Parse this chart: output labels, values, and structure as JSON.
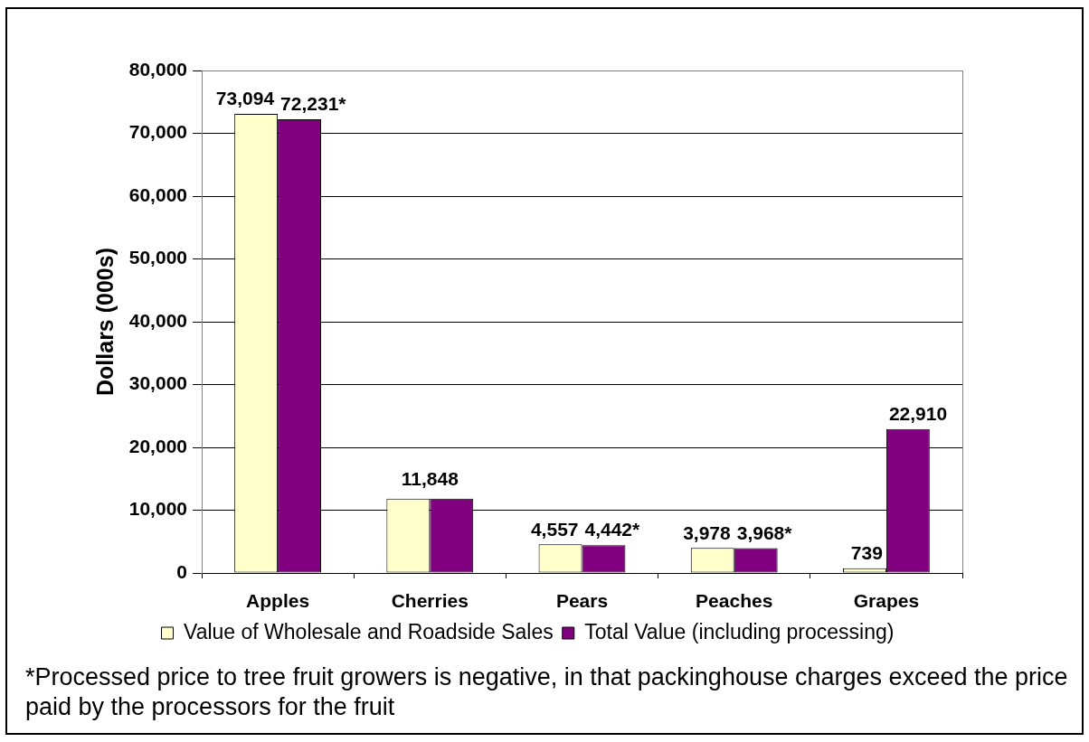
{
  "chart_data": {
    "type": "bar",
    "ylabel": "Dollars (000s)",
    "categories": [
      "Apples",
      "Cherries",
      "Pears",
      "Peaches",
      "Grapes"
    ],
    "series": [
      {
        "name": "Value of Wholesale and Roadside Sales",
        "color": "#ffffcc",
        "values": [
          73094,
          11848,
          4557,
          3978,
          739
        ],
        "value_labels": [
          "73,094",
          null,
          "4,557",
          "3,978",
          "739"
        ]
      },
      {
        "name": "Total Value (including processing)",
        "color": "#800080",
        "values": [
          72231,
          11848,
          4442,
          3968,
          22910
        ],
        "value_labels": [
          "72,231*",
          null,
          "4,442*",
          "3,968*",
          "22,910"
        ]
      }
    ],
    "ylim": [
      0,
      80000
    ],
    "yticks": [
      0,
      {
        "value": 10000,
        "label": "10,000"
      },
      {
        "value": 20000,
        "label": "20,000"
      },
      {
        "value": 30000,
        "label": "30,000"
      },
      {
        "value": 40000,
        "label": "40,000"
      },
      {
        "value": 50000,
        "label": "50,000"
      },
      {
        "value": 60000,
        "label": "60,000"
      },
      {
        "value": 70000,
        "label": "70,000"
      },
      {
        "value": 80000,
        "label": "80,000"
      }
    ],
    "grid": "y",
    "legend": "bottom",
    "annotations": [
      {
        "text": "11,848",
        "x": "Cherries",
        "y": 11848
      },
      "*Processed price to tree fruit growers is negative, in that packinghouse charges exceed the price paid by the processors for the fruit"
    ]
  }
}
